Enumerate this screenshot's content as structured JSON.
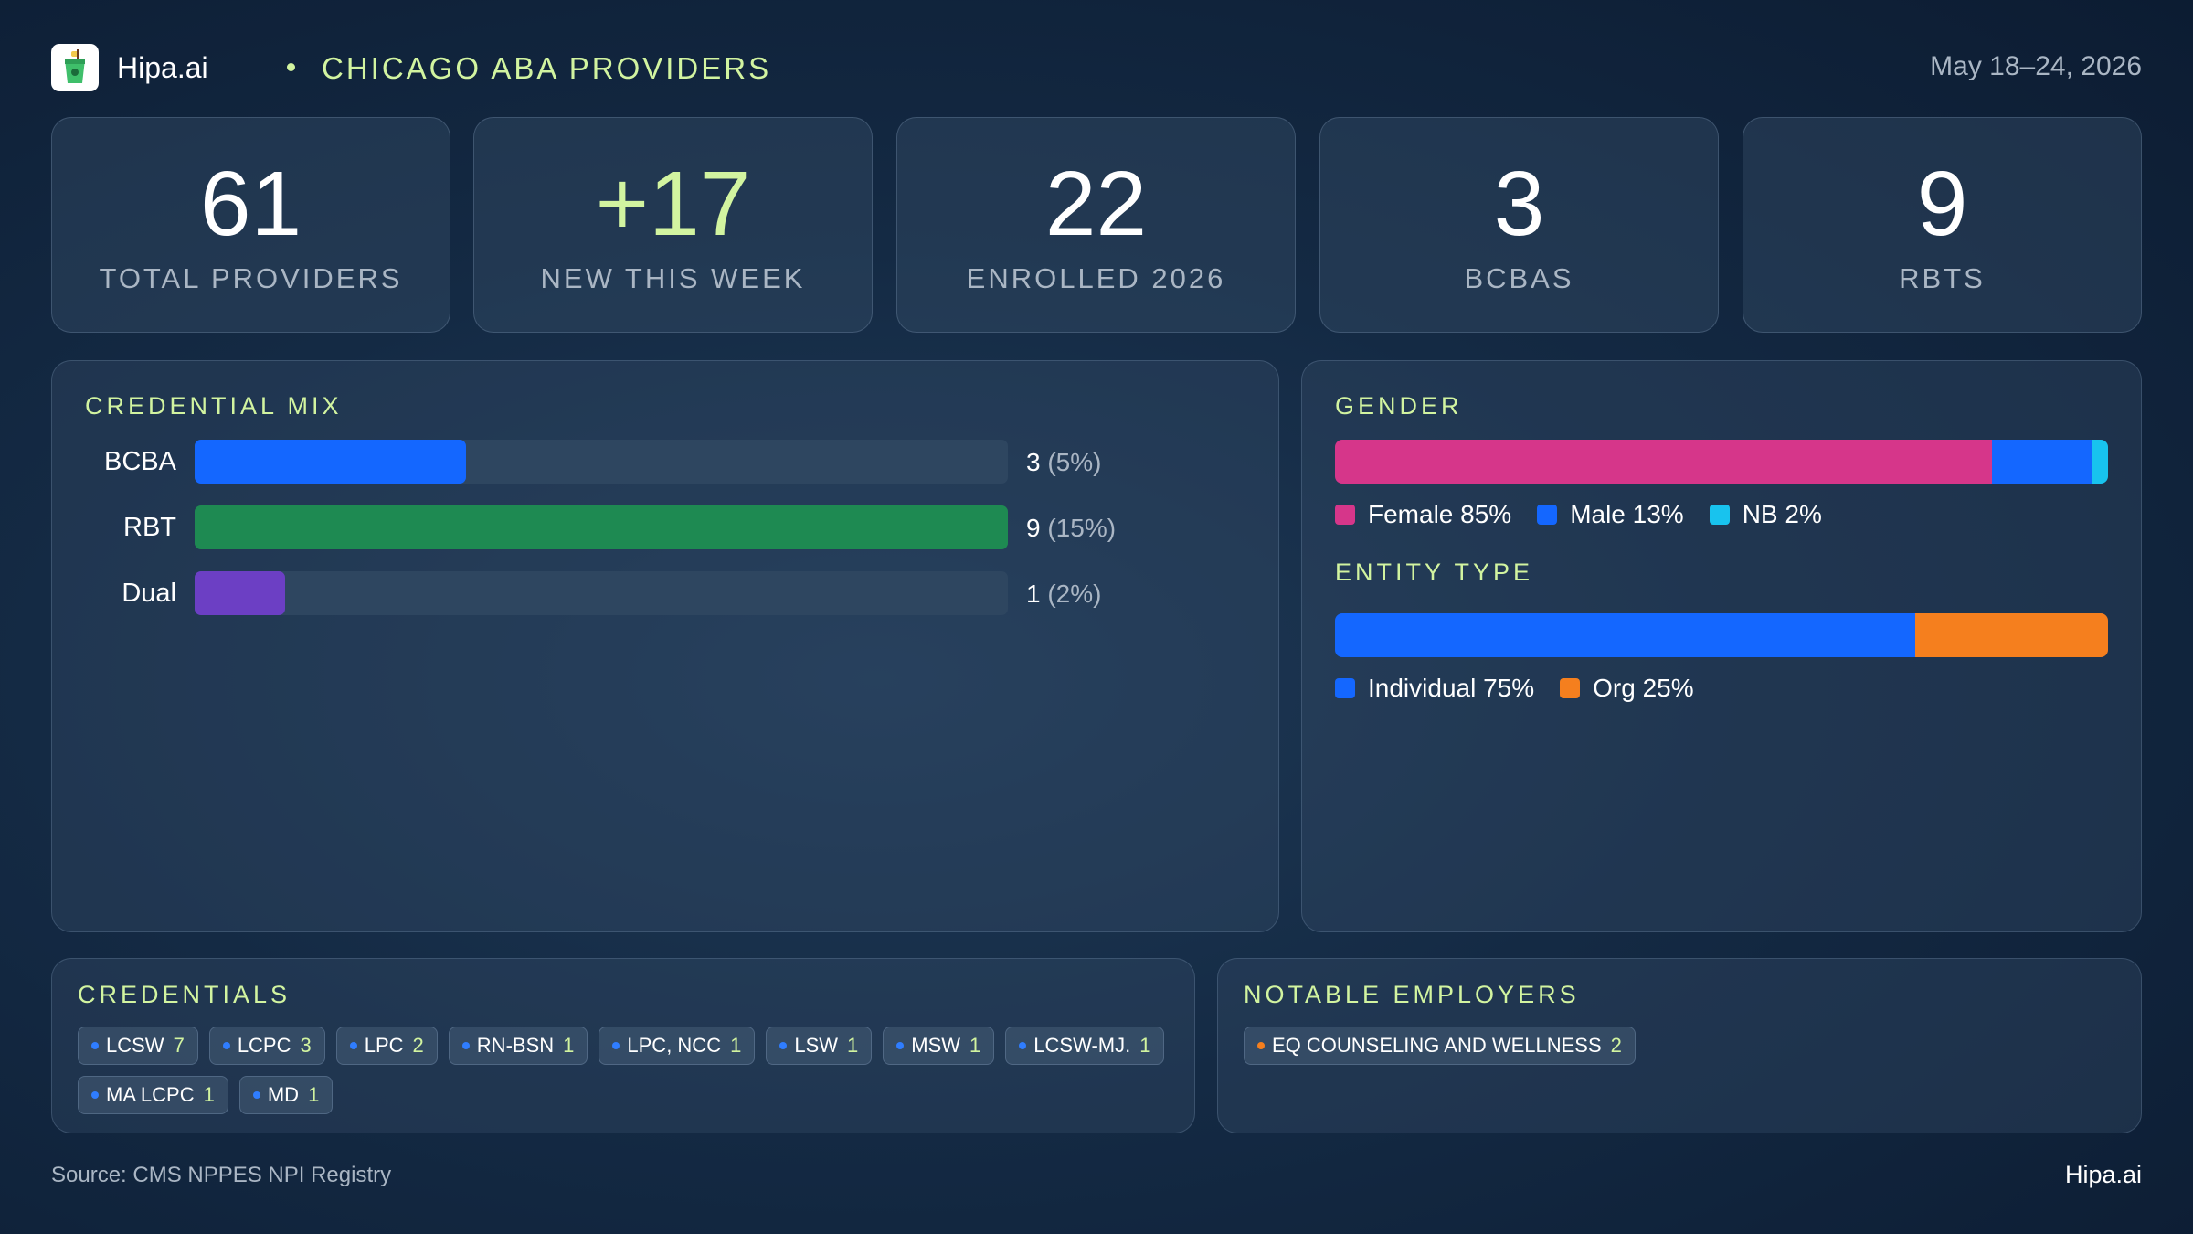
{
  "header": {
    "brand": "Hipa.ai",
    "title": "CHICAGO ABA PROVIDERS",
    "date_range": "May 18–24, 2026",
    "logo_icon": "cup-icon"
  },
  "stats": [
    {
      "value": "61",
      "label": "TOTAL PROVIDERS"
    },
    {
      "value": "+17",
      "label": "NEW THIS WEEK"
    },
    {
      "value": "22",
      "label": "ENROLLED 2026"
    },
    {
      "value": "3",
      "label": "BCBAS"
    },
    {
      "value": "9",
      "label": "RBTS"
    }
  ],
  "chart_data": [
    {
      "type": "bar",
      "title": "CREDENTIAL MIX",
      "orientation": "horizontal",
      "categories": [
        "BCBA",
        "RBT",
        "Dual"
      ],
      "values": [
        3,
        9,
        1
      ],
      "value_labels": [
        "3",
        "9",
        "1"
      ],
      "percent_labels": [
        "(5%)",
        "(15%)",
        "(2%)"
      ],
      "colors": [
        "#1467ff",
        "#1e8a52",
        "#6c3fc4"
      ],
      "xlim": [
        0,
        9
      ]
    },
    {
      "type": "bar",
      "title": "GENDER",
      "stacked": true,
      "categories": [
        "Female",
        "Male",
        "NB"
      ],
      "values": [
        85,
        13,
        2
      ],
      "legend": [
        "Female 85%",
        "Male 13%",
        "NB 2%"
      ],
      "colors": [
        "#d6368a",
        "#1467ff",
        "#18c3ee"
      ]
    },
    {
      "type": "bar",
      "title": "ENTITY TYPE",
      "stacked": true,
      "categories": [
        "Individual",
        "Org"
      ],
      "values": [
        75,
        25
      ],
      "legend": [
        "Individual 75%",
        "Org 25%"
      ],
      "colors": [
        "#1467ff",
        "#f57f1e"
      ]
    }
  ],
  "credentials": {
    "title": "CREDENTIALS",
    "dot_color": "#2f7dff",
    "items": [
      {
        "name": "LCSW",
        "count": "7"
      },
      {
        "name": "LCPC",
        "count": "3"
      },
      {
        "name": "LPC",
        "count": "2"
      },
      {
        "name": "RN-BSN",
        "count": "1"
      },
      {
        "name": "LPC, NCC",
        "count": "1"
      },
      {
        "name": "LSW",
        "count": "1"
      },
      {
        "name": "MSW",
        "count": "1"
      },
      {
        "name": "LCSW-MJ.",
        "count": "1"
      },
      {
        "name": "MA LCPC",
        "count": "1"
      },
      {
        "name": "MD",
        "count": "1"
      }
    ]
  },
  "employers": {
    "title": "NOTABLE EMPLOYERS",
    "dot_color": "#f57f1e",
    "items": [
      {
        "name": "EQ COUNSELING AND WELLNESS",
        "count": "2"
      }
    ]
  },
  "footer": {
    "source": "Source: CMS NPPES NPI Registry",
    "brand": "Hipa.ai"
  }
}
